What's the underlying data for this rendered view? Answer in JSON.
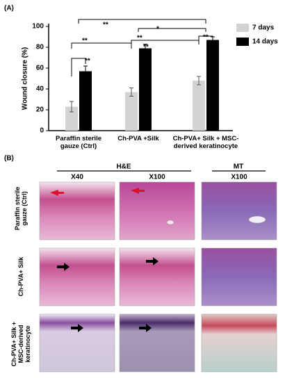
{
  "panel_a_label": "(A)",
  "panel_b_label": "(B)",
  "chart_data": {
    "type": "bar",
    "ylabel": "Wound closure (%)",
    "categories": [
      "Paraffin sterile gauze (Ctrl)",
      "Ch-PVA +Silk",
      "Ch-PVA+ Silk + MSC-derived keratinocyte"
    ],
    "series": [
      {
        "name": "7 days",
        "color": "#d3d3d3",
        "values": [
          23,
          37,
          48
        ],
        "errors": [
          5,
          4,
          4
        ]
      },
      {
        "name": "14 days",
        "color": "#000000",
        "values": [
          57,
          79,
          87
        ],
        "errors": [
          5,
          4,
          3
        ]
      }
    ],
    "ylim": [
      0,
      100
    ],
    "yticks": [
      0,
      20,
      40,
      60,
      80,
      100
    ],
    "legend": "right",
    "annotations": [
      "**",
      "*",
      "**",
      "**",
      "**",
      "**",
      "**"
    ]
  },
  "histology": {
    "groups": [
      "H&E",
      "MT"
    ],
    "magnifications": [
      "X40",
      "X100",
      "X100"
    ],
    "rows": [
      "Paraffin sterile gauze (Ctrl)",
      "Ch-PVA+ Silk",
      "Ch-PVA+ Silk + MSC-derived keratinocyte"
    ]
  }
}
